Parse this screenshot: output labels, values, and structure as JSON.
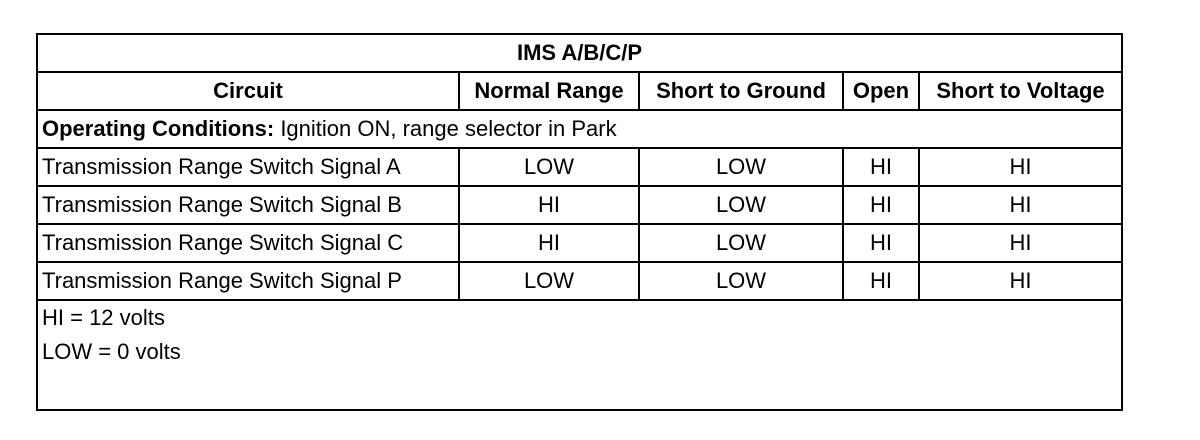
{
  "table": {
    "title": "IMS A/B/C/P",
    "headers": {
      "circuit": "Circuit",
      "normal": "Normal Range",
      "short_ground": "Short to Ground",
      "open": "Open",
      "short_voltage": "Short to Voltage"
    },
    "conditions": {
      "label": "Operating Conditions:",
      "text": " Ignition ON, range selector in Park"
    },
    "rows": [
      {
        "circuit": "Transmission Range Switch Signal A",
        "normal": "LOW",
        "short_ground": "LOW",
        "open": "HI",
        "short_voltage": "HI"
      },
      {
        "circuit": "Transmission Range Switch Signal B",
        "normal": "HI",
        "short_ground": "LOW",
        "open": "HI",
        "short_voltage": "HI"
      },
      {
        "circuit": "Transmission Range Switch Signal C",
        "normal": "HI",
        "short_ground": "LOW",
        "open": "HI",
        "short_voltage": "HI"
      },
      {
        "circuit": "Transmission Range Switch Signal P",
        "normal": "LOW",
        "short_ground": "LOW",
        "open": "HI",
        "short_voltage": "HI"
      }
    ],
    "notes": [
      "HI = 12 volts",
      "LOW = 0 volts"
    ]
  }
}
